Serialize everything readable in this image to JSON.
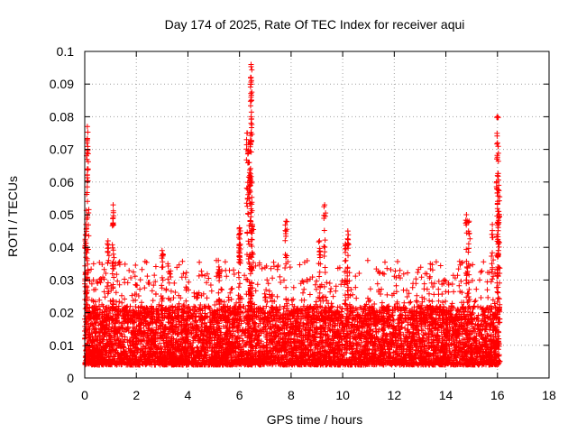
{
  "chart_data": {
    "type": "scatter",
    "title": "Day 174 of 2025, Rate Of TEC Index for receiver aqui",
    "xlabel": "GPS time / hours",
    "ylabel": "ROTI / TECUs",
    "xlim": [
      0,
      18
    ],
    "ylim": [
      0,
      0.1
    ],
    "x_ticks": [
      "0",
      "2",
      "4",
      "6",
      "8",
      "10",
      "12",
      "14",
      "16",
      "18"
    ],
    "y_ticks": [
      "0",
      "0.01",
      "0.02",
      "0.03",
      "0.04",
      "0.05",
      "0.06",
      "0.07",
      "0.08",
      "0.09",
      "0.1"
    ],
    "grid": true,
    "marker": "+",
    "color": "#ff0000",
    "x_data_range": [
      0,
      16.1
    ],
    "baseline_range": [
      0.004,
      0.022
    ],
    "peaks": [
      {
        "x": 0.1,
        "y": 0.077
      },
      {
        "x": 0.12,
        "y": 0.07
      },
      {
        "x": 0.1,
        "y": 0.064
      },
      {
        "x": 0.05,
        "y": 0.047
      },
      {
        "x": 0.02,
        "y": 0.042
      },
      {
        "x": 0.9,
        "y": 0.042
      },
      {
        "x": 1.1,
        "y": 0.053
      },
      {
        "x": 1.1,
        "y": 0.049
      },
      {
        "x": 3.0,
        "y": 0.039
      },
      {
        "x": 5.2,
        "y": 0.034
      },
      {
        "x": 6.0,
        "y": 0.046
      },
      {
        "x": 6.0,
        "y": 0.041
      },
      {
        "x": 6.3,
        "y": 0.075
      },
      {
        "x": 6.35,
        "y": 0.072
      },
      {
        "x": 6.38,
        "y": 0.066
      },
      {
        "x": 6.4,
        "y": 0.062
      },
      {
        "x": 6.45,
        "y": 0.096
      },
      {
        "x": 6.45,
        "y": 0.092
      },
      {
        "x": 6.45,
        "y": 0.09
      },
      {
        "x": 6.45,
        "y": 0.08
      },
      {
        "x": 6.45,
        "y": 0.078
      },
      {
        "x": 6.5,
        "y": 0.047
      },
      {
        "x": 7.8,
        "y": 0.048
      },
      {
        "x": 9.1,
        "y": 0.042
      },
      {
        "x": 9.3,
        "y": 0.053
      },
      {
        "x": 10.2,
        "y": 0.045
      },
      {
        "x": 10.1,
        "y": 0.041
      },
      {
        "x": 14.8,
        "y": 0.05
      },
      {
        "x": 14.9,
        "y": 0.048
      },
      {
        "x": 15.8,
        "y": 0.047
      },
      {
        "x": 16.0,
        "y": 0.08
      },
      {
        "x": 16.0,
        "y": 0.072
      },
      {
        "x": 16.0,
        "y": 0.062
      },
      {
        "x": 16.05,
        "y": 0.059
      },
      {
        "x": 16.05,
        "y": 0.051
      },
      {
        "x": 16.0,
        "y": 0.044
      }
    ]
  }
}
